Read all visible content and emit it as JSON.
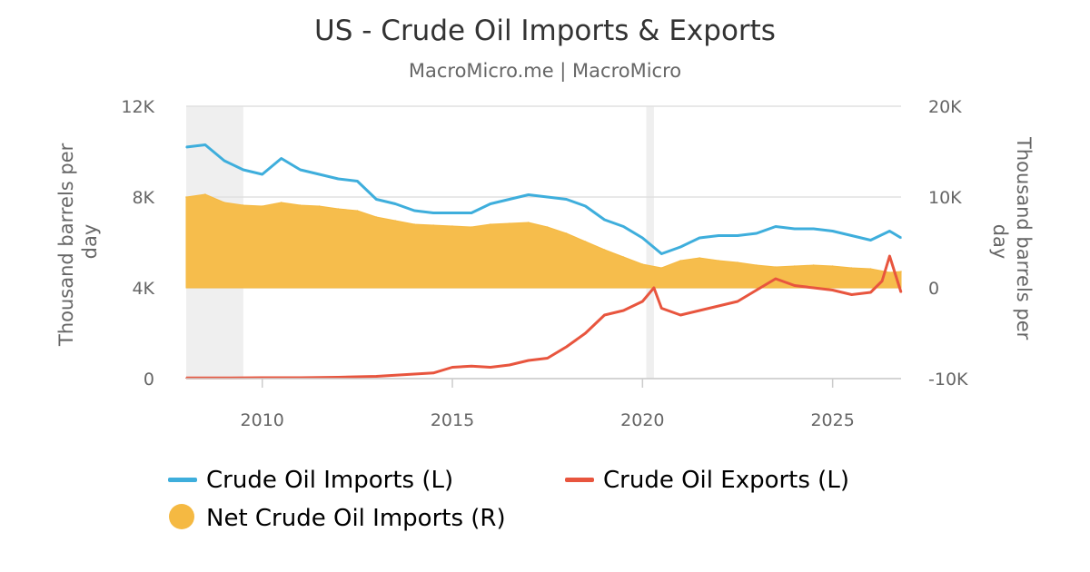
{
  "chart_data": {
    "type": "line",
    "title": "US - Crude Oil Imports & Exports",
    "subtitle": "MacroMicro.me | MacroMicro",
    "y_left": {
      "label": "Thousand barrels per day",
      "range": [
        0,
        12000
      ],
      "ticks": [
        0,
        4000,
        8000,
        12000
      ],
      "tick_labels": [
        "0",
        "4K",
        "8K",
        "12K"
      ]
    },
    "y_right": {
      "label": "Thousand barrels per day",
      "range": [
        -10000,
        20000
      ],
      "ticks": [
        -10000,
        0,
        10000,
        20000
      ],
      "tick_labels": [
        "-10K",
        "0",
        "10K",
        "20K"
      ]
    },
    "x_axis": {
      "range": [
        2008.0,
        2026.8
      ],
      "ticks": [
        2010,
        2015,
        2020,
        2025
      ],
      "tick_labels": [
        "2010",
        "2015",
        "2020",
        "2025"
      ]
    },
    "grid": true,
    "legend_position": "bottom",
    "shaded_periods": [
      [
        2008.0,
        2009.5
      ],
      [
        2020.1,
        2020.3
      ]
    ],
    "colors": {
      "imports": "#3eaedc",
      "exports": "#e8553e",
      "net": "#f5b942",
      "grid": "#e0e0e0",
      "recession": "#efefef"
    },
    "series": [
      {
        "name": "Crude Oil Imports (L)",
        "axis": "left",
        "type": "line",
        "x": [
          2008.0,
          2008.5,
          2009.0,
          2009.5,
          2010.0,
          2010.5,
          2011.0,
          2011.5,
          2012.0,
          2012.5,
          2013.0,
          2013.5,
          2014.0,
          2014.5,
          2015.0,
          2015.5,
          2016.0,
          2016.5,
          2017.0,
          2017.5,
          2018.0,
          2018.5,
          2019.0,
          2019.5,
          2020.0,
          2020.5,
          2021.0,
          2021.5,
          2022.0,
          2022.5,
          2023.0,
          2023.5,
          2024.0,
          2024.5,
          2025.0,
          2025.5,
          2026.0,
          2026.5,
          2026.8
        ],
        "values": [
          10200,
          10300,
          9600,
          9200,
          9000,
          9700,
          9200,
          9000,
          8800,
          8700,
          7900,
          7700,
          7400,
          7300,
          7300,
          7300,
          7700,
          7900,
          8100,
          8000,
          7900,
          7600,
          7000,
          6700,
          6200,
          5500,
          5800,
          6200,
          6300,
          6300,
          6400,
          6700,
          6600,
          6600,
          6500,
          6300,
          6100,
          6500,
          6200
        ]
      },
      {
        "name": "Crude Oil Exports (L)",
        "axis": "left",
        "type": "line",
        "x": [
          2008.0,
          2009.0,
          2010.0,
          2011.0,
          2012.0,
          2013.0,
          2014.0,
          2014.5,
          2014.8,
          2015.0,
          2015.5,
          2016.0,
          2016.5,
          2017.0,
          2017.5,
          2018.0,
          2018.5,
          2019.0,
          2019.5,
          2020.0,
          2020.3,
          2020.5,
          2021.0,
          2021.5,
          2022.0,
          2022.5,
          2023.0,
          2023.5,
          2024.0,
          2024.5,
          2025.0,
          2025.5,
          2026.0,
          2026.3,
          2026.5,
          2026.8
        ],
        "values": [
          30,
          30,
          40,
          40,
          60,
          100,
          200,
          250,
          400,
          500,
          550,
          500,
          600,
          800,
          900,
          1400,
          2000,
          2800,
          3000,
          3400,
          4000,
          3100,
          2800,
          3000,
          3200,
          3400,
          3900,
          4400,
          4100,
          4000,
          3900,
          3700,
          3800,
          4300,
          5400,
          3800
        ]
      },
      {
        "name": "Net Crude Oil Imports (R)",
        "axis": "right",
        "type": "area",
        "x": [
          2008.0,
          2008.5,
          2009.0,
          2009.5,
          2010.0,
          2010.5,
          2011.0,
          2011.5,
          2012.0,
          2012.5,
          2013.0,
          2013.5,
          2014.0,
          2014.5,
          2015.0,
          2015.5,
          2016.0,
          2016.5,
          2017.0,
          2017.5,
          2018.0,
          2018.5,
          2019.0,
          2019.5,
          2020.0,
          2020.5,
          2021.0,
          2021.5,
          2022.0,
          2022.5,
          2023.0,
          2023.5,
          2024.0,
          2024.5,
          2025.0,
          2025.5,
          2026.0,
          2026.5,
          2026.8
        ],
        "values": [
          10000,
          10300,
          9400,
          9100,
          9000,
          9400,
          9100,
          9000,
          8700,
          8500,
          7800,
          7400,
          7000,
          6900,
          6800,
          6700,
          7000,
          7100,
          7200,
          6700,
          6000,
          5100,
          4200,
          3400,
          2600,
          2200,
          3000,
          3300,
          3000,
          2800,
          2500,
          2300,
          2400,
          2500,
          2400,
          2200,
          2100,
          1700,
          1800
        ]
      }
    ]
  }
}
